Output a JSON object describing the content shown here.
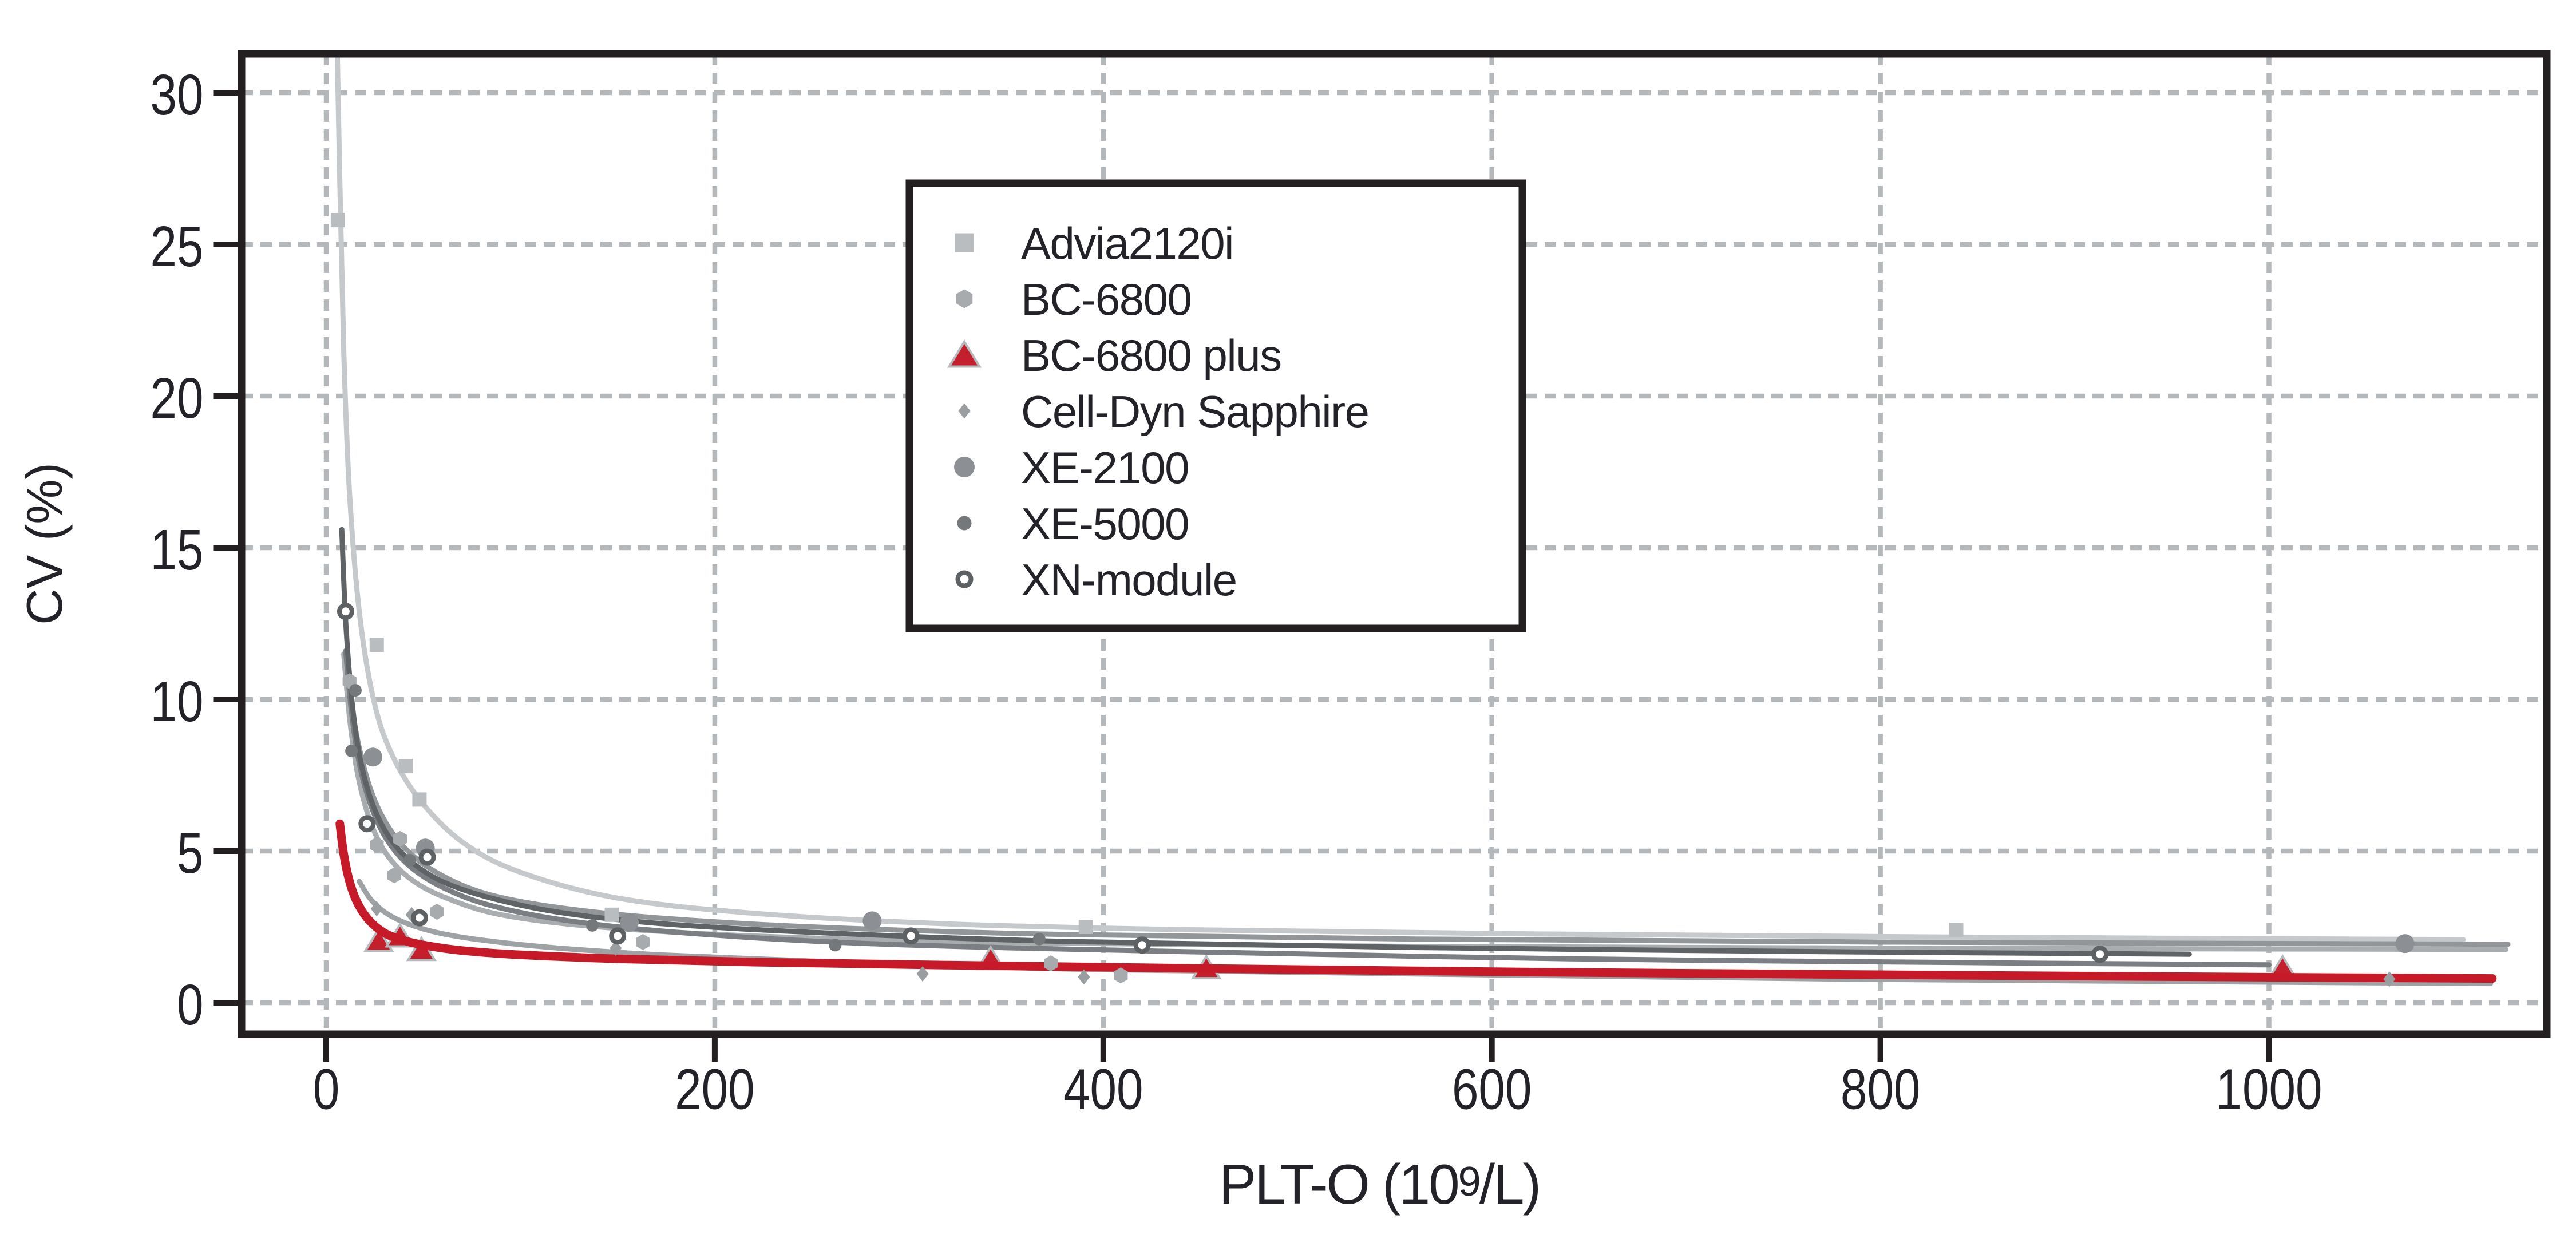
{
  "chart_data": {
    "type": "scatter",
    "title": "",
    "xlabel": "PLT-O (10⁹/L)",
    "xlabel_parts": {
      "base": "PLT-O (10",
      "sup": "9",
      "tail": "/L)"
    },
    "ylabel": "CV (%)",
    "xlim": [
      -44,
      1143
    ],
    "ylim": [
      -1.04,
      31.3
    ],
    "x_ticks": [
      {
        "value": 0,
        "label": "0"
      },
      {
        "value": 200,
        "label": "200"
      },
      {
        "value": 400,
        "label": "400"
      },
      {
        "value": 600,
        "label": "600"
      },
      {
        "value": 800,
        "label": "800"
      },
      {
        "value": 1000,
        "label": "1000"
      }
    ],
    "y_ticks": [
      {
        "value": 0,
        "label": "0"
      },
      {
        "value": 5,
        "label": "5"
      },
      {
        "value": 10,
        "label": "10"
      },
      {
        "value": 15,
        "label": "15"
      },
      {
        "value": 20,
        "label": "20"
      },
      {
        "value": 25,
        "label": "25"
      },
      {
        "value": 30,
        "label": "30"
      }
    ],
    "grid": {
      "visible": true,
      "style": "dashed",
      "color": "#b5b8ba"
    },
    "legend_position": "top-center-inside",
    "series": [
      {
        "name": "Advia2120i",
        "marker": {
          "shape": "square",
          "color": "#b9bdc0",
          "size": 25,
          "legend_size": 33
        },
        "line": {
          "color": "#c6c9cb",
          "width": 9
        },
        "points": [
          [
            6,
            25.8
          ],
          [
            26,
            11.8
          ],
          [
            41,
            7.8
          ],
          [
            48,
            6.7
          ],
          [
            147,
            2.9
          ],
          [
            391,
            2.5
          ],
          [
            839,
            2.4
          ]
        ],
        "fit": [
          [
            5.2,
            33
          ],
          [
            7,
            27
          ],
          [
            9,
            21.5
          ],
          [
            12,
            16.8
          ],
          [
            17,
            12.9
          ],
          [
            24,
            10.1
          ],
          [
            33,
            8.3
          ],
          [
            48,
            6.7
          ],
          [
            70,
            5.3
          ],
          [
            100,
            4.3
          ],
          [
            150,
            3.45
          ],
          [
            220,
            2.95
          ],
          [
            320,
            2.6
          ],
          [
            450,
            2.4
          ],
          [
            620,
            2.27
          ],
          [
            850,
            2.16
          ],
          [
            1100,
            2.08
          ]
        ]
      },
      {
        "name": "BC-6800",
        "marker": {
          "shape": "hexagon",
          "color": "#a7abae",
          "size": 28,
          "legend_size": 33
        },
        "line": {
          "color": "#a9adb0",
          "width": 9
        },
        "points": [
          [
            12,
            10.6
          ],
          [
            26,
            5.2
          ],
          [
            38,
            5.4
          ],
          [
            35,
            4.2
          ],
          [
            57,
            3.0
          ],
          [
            163,
            2.0
          ],
          [
            373,
            1.3
          ],
          [
            409,
            0.9
          ]
        ],
        "fit": [
          [
            9,
            11.5
          ],
          [
            12,
            9.4
          ],
          [
            16,
            7.6
          ],
          [
            22,
            6.1
          ],
          [
            30,
            5.0
          ],
          [
            42,
            4.15
          ],
          [
            60,
            3.5
          ],
          [
            90,
            2.9
          ],
          [
            140,
            2.5
          ],
          [
            220,
            2.2
          ],
          [
            350,
            1.98
          ],
          [
            550,
            1.86
          ],
          [
            800,
            1.8
          ],
          [
            1122,
            1.76
          ]
        ]
      },
      {
        "name": "BC-6800 plus",
        "marker": {
          "shape": "triangle",
          "color": "#c41f2d",
          "size": 44,
          "legend_size": 50,
          "stroke": "#b7babc",
          "stroke_width": 4
        },
        "line": {
          "color": "#c61a28",
          "width": 15
        },
        "points": [
          [
            27,
            2.05
          ],
          [
            38,
            2.2
          ],
          [
            49,
            1.75
          ],
          [
            342,
            1.45
          ],
          [
            453,
            1.15
          ],
          [
            1007,
            1.15
          ]
        ],
        "fit": [
          [
            7,
            5.9
          ],
          [
            9,
            4.9
          ],
          [
            12,
            4.0
          ],
          [
            16,
            3.3
          ],
          [
            22,
            2.72
          ],
          [
            30,
            2.3
          ],
          [
            40,
            2.05
          ],
          [
            52,
            1.88
          ],
          [
            70,
            1.72
          ],
          [
            100,
            1.58
          ],
          [
            150,
            1.45
          ],
          [
            220,
            1.34
          ],
          [
            320,
            1.24
          ],
          [
            450,
            1.13
          ],
          [
            620,
            1.01
          ],
          [
            850,
            0.9
          ],
          [
            1115,
            0.8
          ]
        ]
      },
      {
        "name": "Cell-Dyn Sapphire",
        "marker": {
          "shape": "diamond",
          "color": "#9a9ea1",
          "size": 27,
          "legend_size": 27
        },
        "line": {
          "color": "#9ea2a5",
          "width": 9
        },
        "points": [
          [
            26,
            3.1
          ],
          [
            44,
            2.9
          ],
          [
            149,
            1.8
          ],
          [
            307,
            0.95
          ],
          [
            390,
            0.85
          ],
          [
            1062,
            0.78
          ]
        ],
        "fit": [
          [
            17,
            4.0
          ],
          [
            23,
            3.4
          ],
          [
            31,
            2.95
          ],
          [
            42,
            2.6
          ],
          [
            58,
            2.3
          ],
          [
            82,
            2.05
          ],
          [
            120,
            1.8
          ],
          [
            175,
            1.57
          ],
          [
            260,
            1.35
          ],
          [
            390,
            1.1
          ],
          [
            560,
            0.95
          ],
          [
            780,
            0.78
          ],
          [
            950,
            0.7
          ],
          [
            1114,
            0.63
          ]
        ]
      },
      {
        "name": "XE-2100",
        "marker": {
          "shape": "circle",
          "color": "#8c9094",
          "size": 33,
          "legend_size": 36
        },
        "line": {
          "color": "#939699",
          "width": 9
        },
        "points": [
          [
            24,
            8.1
          ],
          [
            51,
            5.1
          ],
          [
            156,
            2.65
          ],
          [
            281,
            2.7
          ],
          [
            1070,
            1.95
          ]
        ],
        "fit": [
          [
            13,
            9.8
          ],
          [
            17,
            8.4
          ],
          [
            23,
            7.0
          ],
          [
            31,
            5.9
          ],
          [
            42,
            5.0
          ],
          [
            58,
            4.25
          ],
          [
            82,
            3.6
          ],
          [
            118,
            3.15
          ],
          [
            170,
            2.8
          ],
          [
            250,
            2.5
          ],
          [
            380,
            2.25
          ],
          [
            560,
            2.1
          ],
          [
            800,
            2.0
          ],
          [
            1123,
            1.93
          ]
        ]
      },
      {
        "name": "XE-5000",
        "marker": {
          "shape": "circle",
          "color": "#75787b",
          "size": 22,
          "legend_size": 25
        },
        "line": {
          "color": "#7b7e82",
          "width": 9
        },
        "points": [
          [
            15,
            10.3
          ],
          [
            13,
            8.3
          ],
          [
            43,
            4.7
          ],
          [
            137,
            2.55
          ],
          [
            262,
            1.9
          ],
          [
            367,
            2.1
          ]
        ],
        "fit": [
          [
            10,
            11.6
          ],
          [
            13,
            9.6
          ],
          [
            17,
            7.9
          ],
          [
            23,
            6.5
          ],
          [
            31,
            5.4
          ],
          [
            43,
            4.5
          ],
          [
            60,
            3.8
          ],
          [
            85,
            3.2
          ],
          [
            125,
            2.7
          ],
          [
            185,
            2.3
          ],
          [
            280,
            1.95
          ],
          [
            430,
            1.7
          ],
          [
            640,
            1.45
          ],
          [
            850,
            1.32
          ],
          [
            1000,
            1.25
          ]
        ]
      },
      {
        "name": "XN-module",
        "marker": {
          "shape": "circle-open",
          "color": "#5d6164",
          "size": 30,
          "legend_size": 31,
          "ring_width": 8
        },
        "line": {
          "color": "#606366",
          "width": 9
        },
        "points": [
          [
            10,
            12.9
          ],
          [
            21,
            5.9
          ],
          [
            48,
            2.8
          ],
          [
            52,
            4.8
          ],
          [
            150,
            2.2
          ],
          [
            301,
            2.2
          ],
          [
            420,
            1.9
          ],
          [
            913,
            1.6
          ]
        ],
        "fit": [
          [
            8,
            15.6
          ],
          [
            10,
            12.6
          ],
          [
            13,
            10.1
          ],
          [
            17,
            8.2
          ],
          [
            23,
            6.7
          ],
          [
            31,
            5.6
          ],
          [
            42,
            4.75
          ],
          [
            58,
            4.05
          ],
          [
            82,
            3.5
          ],
          [
            118,
            3.0
          ],
          [
            170,
            2.62
          ],
          [
            250,
            2.32
          ],
          [
            380,
            2.02
          ],
          [
            560,
            1.82
          ],
          [
            780,
            1.68
          ],
          [
            959,
            1.6
          ]
        ]
      }
    ]
  },
  "layout_text": {
    "figure_role": "Imprecision (CV%) versus platelet count (PLT-O) for seven hematology analyzers"
  }
}
